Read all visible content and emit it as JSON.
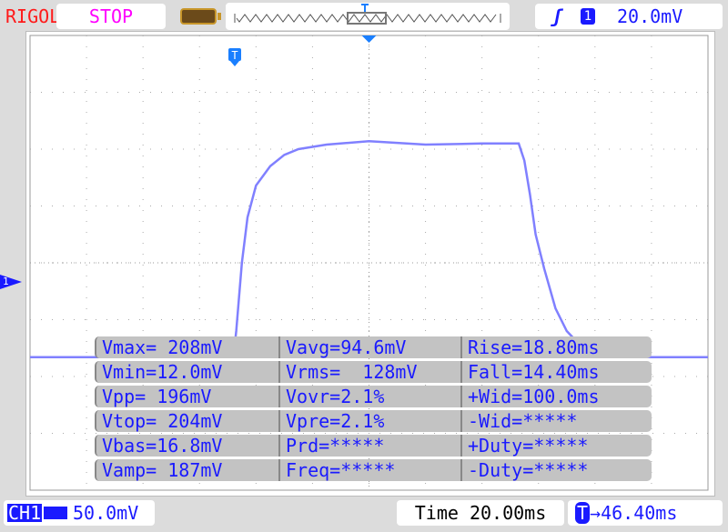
{
  "header": {
    "brand": "RIGOL",
    "run_state": "STOP",
    "trigger_slope_icon": "rising-edge-icon",
    "trigger_channel": "1",
    "trigger_level": "20.0mV"
  },
  "colors": {
    "trace": "#8080ff",
    "text_blue": "#1a1aff",
    "brand": "#ff1a1a",
    "run_state": "#ff00ff"
  },
  "measurements": [
    [
      "Vmax= 208mV",
      "Vavg=94.6mV",
      "Rise=18.80ms"
    ],
    [
      "Vmin=12.0mV",
      "Vrms=  128mV",
      "Fall=14.40ms"
    ],
    [
      "Vpp= 196mV",
      "Vovr=2.1%",
      "+Wid=100.0ms"
    ],
    [
      "Vtop= 204mV",
      "Vpre=2.1%",
      "-Wid=*****"
    ],
    [
      "Vbas=16.8mV",
      "Prd=*****",
      "+Duty=*****"
    ],
    [
      "Vamp= 187mV",
      "Freq=*****",
      "-Duty=*****"
    ]
  ],
  "footer": {
    "channel": "CH1",
    "coupling_icon": "dc-coupling-icon",
    "volts_per_div": "50.0mV",
    "time_label": "Time 20.00ms",
    "trigger_offset_marker": "T",
    "trigger_offset": "46.40ms"
  },
  "markers": {
    "channel_marker": "1",
    "trigger_marker": "T"
  },
  "chart_data": {
    "type": "line",
    "xlabel": "",
    "ylabel": "",
    "x_units": "ms",
    "y_units": "mV",
    "time_per_div_ms": 20,
    "volts_per_div_mV": 50,
    "xlim": [
      -120,
      120
    ],
    "ylim": [
      -100,
      300
    ],
    "grid": true,
    "series": [
      {
        "values": [
          [
            -120,
            17
          ],
          [
            -48,
            17
          ],
          [
            -47,
            40
          ],
          [
            -45,
            100
          ],
          [
            -43,
            140
          ],
          [
            -40,
            168
          ],
          [
            -35,
            185
          ],
          [
            -30,
            195
          ],
          [
            -25,
            200
          ],
          [
            -15,
            204
          ],
          [
            0,
            207
          ],
          [
            20,
            204
          ],
          [
            40,
            205
          ],
          [
            53,
            205
          ],
          [
            55,
            190
          ],
          [
            57,
            160
          ],
          [
            59,
            125
          ],
          [
            62,
            95
          ],
          [
            66,
            60
          ],
          [
            70,
            40
          ],
          [
            75,
            27
          ],
          [
            82,
            20
          ],
          [
            95,
            17
          ],
          [
            120,
            17
          ]
        ]
      }
    ]
  }
}
